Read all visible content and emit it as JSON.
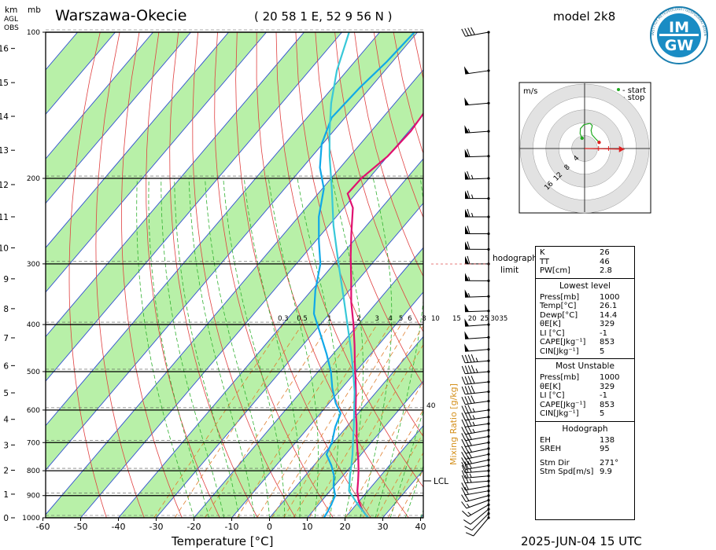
{
  "header": {
    "station": "Warszawa-Okecie",
    "coords": "( 20 58 1 E, 52 9 56 N )",
    "model": "model 2k8",
    "axis_km": "km",
    "axis_agl": "AGL",
    "axis_obs": "OBS",
    "axis_mb": "mb",
    "logo_text_top": "IM",
    "logo_text_bottom": "GW",
    "logo_ring_text": "INSTYTUT METEOROLOGII I GOSPODARKI WODNEJ"
  },
  "footer": {
    "xlabel": "Temperature [°C]",
    "datetime": "2025-JUN-04   15 UTC"
  },
  "labels": {
    "mixing_ratio": "Mixing Ratio [g/kg]",
    "lcl": "LCL",
    "hodograph_limit_1": "hodograph",
    "hodograph_limit_2": "limit",
    "mr_40": "40"
  },
  "hodograph": {
    "unit": "m/s",
    "legend_start": "- start",
    "legend_stop": "- stop",
    "ring_labels": [
      "4",
      "8",
      "12",
      "16"
    ],
    "start_color": "#22aa22",
    "stop_color": "#dd2222",
    "trace": [
      [
        -0.8,
        3.2
      ],
      [
        -1.4,
        4.6
      ],
      [
        -1.3,
        6.2
      ],
      [
        -0.2,
        7.4
      ],
      [
        1.7,
        7.8
      ],
      [
        2.4,
        7.1
      ],
      [
        2.0,
        5.6
      ],
      [
        2.3,
        4.3
      ],
      [
        3.5,
        2.9
      ],
      [
        4.5,
        1.9
      ]
    ],
    "storm_motion": {
      "dir": 271,
      "speed": 9.9
    }
  },
  "indices": {
    "top": [
      {
        "k": "K",
        "v": "26"
      },
      {
        "k": "TT",
        "v": "46"
      },
      {
        "k": "PW[cm]",
        "v": "2.8"
      }
    ],
    "lowest": {
      "title": "Lowest level",
      "rows": [
        {
          "k": "Press[mb]",
          "v": "1000"
        },
        {
          "k": "Temp[°C]",
          "v": "26.1"
        },
        {
          "k": "Dewp[°C]",
          "v": "14.4"
        },
        {
          "k": "θE[K]",
          "v": "329"
        },
        {
          "k": "LI [°C]",
          "v": "-1"
        },
        {
          "k": "CAPE[Jkg⁻¹]",
          "v": "853"
        },
        {
          "k": "CIN[Jkg⁻¹]",
          "v": "5"
        }
      ]
    },
    "unstable": {
      "title": "Most Unstable",
      "rows": [
        {
          "k": "Press[mb]",
          "v": "1000"
        },
        {
          "k": "θE[K]",
          "v": "329"
        },
        {
          "k": "LI [°C]",
          "v": "-1"
        },
        {
          "k": "CAPE[Jkg⁻¹]",
          "v": "853"
        },
        {
          "k": "CIN[Jkg⁻¹]",
          "v": "5"
        }
      ]
    },
    "hodo": {
      "title": "Hodograph",
      "rows": [
        {
          "k": "EH",
          "v": "138"
        },
        {
          "k": "SREH",
          "v": "95"
        },
        {
          "k": "Stm Dir",
          "v": "271°"
        },
        {
          "k": "Stm Spd[m/s]",
          "v": "9.9"
        }
      ]
    }
  },
  "colors": {
    "temperature": "#e01070",
    "dewpoint": "#10a8e8",
    "parcel": "#38c8d8",
    "isotherm_band": "#b8f0a8",
    "isotherm_line": "#3050d0",
    "dry_adiabat": "#e04040",
    "moist_adiabat": "#30b030",
    "mixing_ratio": "#e08030"
  },
  "chart_data": {
    "type": "skew-t log-p",
    "title": "Warszawa-Okecie",
    "xlabel": "Temperature [°C]",
    "ylabel": "mb",
    "x_ticks": [
      -60,
      -50,
      -40,
      -30,
      -20,
      -10,
      0,
      10,
      20,
      30,
      40
    ],
    "xlim": [
      -60,
      40
    ],
    "pressure_ticks": [
      100,
      200,
      300,
      400,
      500,
      600,
      700,
      800,
      900,
      1000
    ],
    "ylim_mb": [
      1000,
      100
    ],
    "height_ticks_km": [
      0,
      1,
      2,
      3,
      4,
      5,
      6,
      7,
      8,
      9,
      10,
      11,
      12,
      13,
      14,
      15,
      16
    ],
    "height_pressure_mb": [
      1000,
      894,
      798,
      708,
      627,
      553,
      486,
      426,
      371,
      322,
      278,
      240,
      206,
      175,
      149,
      127,
      108
    ],
    "mixing_ratio_labels": [
      "0.3",
      "0.5",
      "1",
      "2",
      "3",
      "4",
      "5",
      "6",
      "8",
      "10",
      "15",
      "20",
      "25",
      "30",
      "35"
    ],
    "mixing_ratio_values": [
      0.3,
      0.5,
      1,
      2,
      3,
      4,
      5,
      6,
      8,
      10,
      15,
      20,
      25,
      30,
      35
    ],
    "series": [
      {
        "name": "temperature",
        "points": [
          [
            1000,
            26.1
          ],
          [
            960,
            22.5
          ],
          [
            920,
            19.6
          ],
          [
            880,
            17.2
          ],
          [
            840,
            15.2
          ],
          [
            800,
            13.0
          ],
          [
            760,
            10.5
          ],
          [
            720,
            7.7
          ],
          [
            680,
            4.8
          ],
          [
            640,
            1.9
          ],
          [
            600,
            -1.4
          ],
          [
            560,
            -4.6
          ],
          [
            520,
            -8.2
          ],
          [
            480,
            -12.2
          ],
          [
            440,
            -16.4
          ],
          [
            400,
            -21.2
          ],
          [
            360,
            -26.8
          ],
          [
            320,
            -32.4
          ],
          [
            290,
            -37.2
          ],
          [
            260,
            -42.2
          ],
          [
            230,
            -47.6
          ],
          [
            215,
            -52.2
          ],
          [
            200,
            -52.0
          ],
          [
            180,
            -50.0
          ],
          [
            160,
            -49.5
          ],
          [
            140,
            -50.5
          ],
          [
            120,
            -52.5
          ],
          [
            100,
            -56.0
          ]
        ]
      },
      {
        "name": "dewpoint",
        "points": [
          [
            1000,
            14.4
          ],
          [
            970,
            14.0
          ],
          [
            940,
            13.4
          ],
          [
            900,
            12.4
          ],
          [
            860,
            9.8
          ],
          [
            820,
            7.7
          ],
          [
            780,
            4.6
          ],
          [
            740,
            0.8
          ],
          [
            700,
            -0.4
          ],
          [
            650,
            -3.0
          ],
          [
            610,
            -4.6
          ],
          [
            580,
            -8.3
          ],
          [
            540,
            -12.6
          ],
          [
            500,
            -16.6
          ],
          [
            460,
            -21.7
          ],
          [
            420,
            -27.6
          ],
          [
            380,
            -34.1
          ],
          [
            340,
            -39.0
          ],
          [
            300,
            -43.6
          ],
          [
            270,
            -49.0
          ],
          [
            240,
            -54.6
          ],
          [
            210,
            -59.6
          ],
          [
            190,
            -65.4
          ],
          [
            170,
            -70.2
          ],
          [
            150,
            -73.5
          ],
          [
            130,
            -72.8
          ],
          [
            115,
            -71.5
          ],
          [
            100,
            -70.8
          ]
        ]
      },
      {
        "name": "parcel",
        "points": [
          [
            1000,
            26.1
          ],
          [
            940,
            20.5
          ],
          [
            880,
            15.0
          ],
          [
            820,
            11.9
          ],
          [
            780,
            9.9
          ],
          [
            740,
            7.7
          ],
          [
            700,
            5.2
          ],
          [
            650,
            1.9
          ],
          [
            600,
            -1.8
          ],
          [
            550,
            -5.8
          ],
          [
            500,
            -10.7
          ],
          [
            450,
            -16.3
          ],
          [
            400,
            -22.8
          ],
          [
            350,
            -30.2
          ],
          [
            300,
            -38.8
          ],
          [
            250,
            -48.8
          ],
          [
            210,
            -57.5
          ],
          [
            180,
            -65.4
          ],
          [
            160,
            -71.0
          ],
          [
            140,
            -76.9
          ],
          [
            120,
            -82.7
          ],
          [
            100,
            -88.1
          ]
        ]
      }
    ],
    "wind_barbs": [
      {
        "p": 1000,
        "dir": 220,
        "spd": 4
      },
      {
        "p": 980,
        "dir": 225,
        "spd": 5
      },
      {
        "p": 960,
        "dir": 230,
        "spd": 6
      },
      {
        "p": 940,
        "dir": 240,
        "spd": 7
      },
      {
        "p": 920,
        "dir": 250,
        "spd": 8
      },
      {
        "p": 900,
        "dir": 255,
        "spd": 9
      },
      {
        "p": 880,
        "dir": 260,
        "spd": 10
      },
      {
        "p": 860,
        "dir": 260,
        "spd": 11
      },
      {
        "p": 840,
        "dir": 265,
        "spd": 12
      },
      {
        "p": 820,
        "dir": 265,
        "spd": 12
      },
      {
        "p": 800,
        "dir": 265,
        "spd": 13
      },
      {
        "p": 780,
        "dir": 260,
        "spd": 14
      },
      {
        "p": 760,
        "dir": 258,
        "spd": 14
      },
      {
        "p": 740,
        "dir": 258,
        "spd": 15
      },
      {
        "p": 720,
        "dir": 258,
        "spd": 15
      },
      {
        "p": 700,
        "dir": 260,
        "spd": 16
      },
      {
        "p": 680,
        "dir": 260,
        "spd": 16
      },
      {
        "p": 660,
        "dir": 260,
        "spd": 17
      },
      {
        "p": 640,
        "dir": 262,
        "spd": 17
      },
      {
        "p": 620,
        "dir": 262,
        "spd": 18
      },
      {
        "p": 600,
        "dir": 262,
        "spd": 18
      },
      {
        "p": 575,
        "dir": 262,
        "spd": 19
      },
      {
        "p": 550,
        "dir": 264,
        "spd": 20
      },
      {
        "p": 525,
        "dir": 264,
        "spd": 21
      },
      {
        "p": 500,
        "dir": 265,
        "spd": 22
      },
      {
        "p": 475,
        "dir": 265,
        "spd": 23
      },
      {
        "p": 450,
        "dir": 265,
        "spd": 24
      },
      {
        "p": 425,
        "dir": 266,
        "spd": 24
      },
      {
        "p": 400,
        "dir": 266,
        "spd": 25
      },
      {
        "p": 375,
        "dir": 268,
        "spd": 26
      },
      {
        "p": 350,
        "dir": 268,
        "spd": 27
      },
      {
        "p": 325,
        "dir": 270,
        "spd": 28
      },
      {
        "p": 300,
        "dir": 270,
        "spd": 29
      },
      {
        "p": 280,
        "dir": 270,
        "spd": 30
      },
      {
        "p": 260,
        "dir": 270,
        "spd": 31
      },
      {
        "p": 240,
        "dir": 270,
        "spd": 32
      },
      {
        "p": 220,
        "dir": 270,
        "spd": 33
      },
      {
        "p": 200,
        "dir": 268,
        "spd": 32
      },
      {
        "p": 180,
        "dir": 268,
        "spd": 30
      },
      {
        "p": 160,
        "dir": 266,
        "spd": 28
      },
      {
        "p": 140,
        "dir": 265,
        "spd": 26
      },
      {
        "p": 120,
        "dir": 262,
        "spd": 24
      },
      {
        "p": 100,
        "dir": 260,
        "spd": 20
      }
    ],
    "lcl_mb": 820,
    "hodograph_limit_mb": 300
  }
}
